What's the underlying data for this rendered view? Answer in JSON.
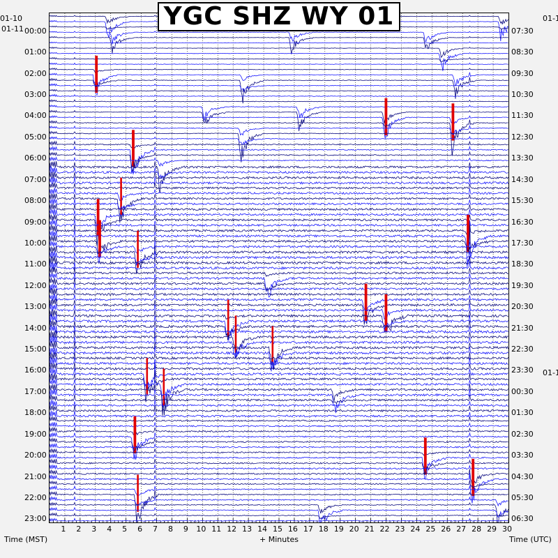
{
  "title": "YGC SHZ WY 01",
  "left_date_top": "01-10",
  "left_date": "01-11",
  "right_date": "01-1",
  "left_hours": [
    "00:00",
    "01:00",
    "02:00",
    "03:00",
    "04:00",
    "05:00",
    "06:00",
    "07:00",
    "08:00",
    "09:00",
    "10:00",
    "11:00",
    "12:00",
    "13:00",
    "14:00",
    "15:00",
    "16:00",
    "17:00",
    "18:00",
    "19:00",
    "20:00",
    "21:00",
    "22:00",
    "23:00"
  ],
  "right_hours": [
    "07:30",
    "08:30",
    "09:30",
    "10:30",
    "11:30",
    "12:30",
    "13:30",
    "14:30",
    "15:30",
    "16:30",
    "17:30",
    "18:30",
    "19:30",
    "20:30",
    "21:30",
    "22:30",
    "23:30",
    "00:30",
    "01:30",
    "02:30",
    "03:30",
    "04:30",
    "05:30",
    "06:30"
  ],
  "minute_ticks": [
    "1",
    "2",
    "3",
    "4",
    "5",
    "6",
    "7",
    "8",
    "9",
    "10",
    "11",
    "12",
    "13",
    "14",
    "15",
    "16",
    "17",
    "18",
    "19",
    "20",
    "21",
    "22",
    "23",
    "24",
    "25",
    "26",
    "27",
    "28",
    "29",
    "30"
  ],
  "x_axis_left_label": "Time (MST)",
  "x_axis_center_label": "+ Minutes",
  "x_axis_right_label": "Time (UTC)",
  "colors": {
    "trace_a": "#0a0a80",
    "trace_b": "#1a1aff",
    "clip": "#e00000",
    "grid": "#000000"
  },
  "chart_data": {
    "type": "seismogram-helicorder",
    "minutes_per_line": 30,
    "lines_per_hour": 4,
    "hours": 24,
    "noise_level_by_hour": [
      0.15,
      0.15,
      0.2,
      0.25,
      0.25,
      0.3,
      0.45,
      0.9,
      0.8,
      0.85,
      0.9,
      1.0,
      0.85,
      0.9,
      1.0,
      1.0,
      0.95,
      0.85,
      0.8,
      0.6,
      0.55,
      0.6,
      0.45,
      0.35
    ],
    "events": [
      {
        "hour": 0.2,
        "minute": 3.8,
        "amp": 1.4
      },
      {
        "hour": 0.2,
        "minute": 29.5,
        "amp": 1.6
      },
      {
        "hour": 0.9,
        "minute": 4.1,
        "amp": 1.3
      },
      {
        "hour": 0.9,
        "minute": 15.8,
        "amp": 1.4
      },
      {
        "hour": 0.9,
        "minute": 24.6,
        "amp": 1.5
      },
      {
        "hour": 1.7,
        "minute": 25.6,
        "amp": 1.6
      },
      {
        "hour": 2.8,
        "minute": 3.0,
        "amp": 1.8,
        "clip": true
      },
      {
        "hour": 2.9,
        "minute": 26.5,
        "amp": 1.6
      },
      {
        "hour": 3.0,
        "minute": 12.6,
        "amp": 1.5
      },
      {
        "hour": 4.4,
        "minute": 10.1,
        "amp": 1.5
      },
      {
        "hour": 4.4,
        "minute": 16.3,
        "amp": 1.7
      },
      {
        "hour": 4.7,
        "minute": 21.9,
        "amp": 1.9,
        "clip": true
      },
      {
        "hour": 5.0,
        "minute": 26.3,
        "amp": 2.0,
        "clip": true
      },
      {
        "hour": 5.5,
        "minute": 12.5,
        "amp": 2.0
      },
      {
        "hour": 6.3,
        "minute": 5.4,
        "amp": 2.5,
        "clip": true
      },
      {
        "hour": 7.0,
        "minute": 7.2,
        "amp": 1.8
      },
      {
        "hour": 8.5,
        "minute": 4.6,
        "amp": 2.0,
        "clip": true
      },
      {
        "hour": 9.4,
        "minute": 3.1,
        "amp": 2.2,
        "clip": true
      },
      {
        "hour": 10.6,
        "minute": 3.2,
        "amp": 1.8,
        "clip": true
      },
      {
        "hour": 10.3,
        "minute": 27.3,
        "amp": 2.3,
        "clip": true
      },
      {
        "hour": 11.0,
        "minute": 5.7,
        "amp": 2.0,
        "clip": true
      },
      {
        "hour": 12.3,
        "minute": 14.2,
        "amp": 1.8
      },
      {
        "hour": 13.4,
        "minute": 20.6,
        "amp": 2.0,
        "clip": true
      },
      {
        "hour": 14.0,
        "minute": 21.9,
        "amp": 2.0,
        "clip": true
      },
      {
        "hour": 14.3,
        "minute": 11.6,
        "amp": 2.0,
        "clip": true
      },
      {
        "hour": 15.1,
        "minute": 12.1,
        "amp": 2.2,
        "clip": true
      },
      {
        "hour": 15.6,
        "minute": 14.5,
        "amp": 2.4,
        "clip": true
      },
      {
        "hour": 16.9,
        "minute": 6.3,
        "amp": 2.2,
        "clip": true
      },
      {
        "hour": 17.4,
        "minute": 7.4,
        "amp": 2.6,
        "clip": true
      },
      {
        "hour": 17.7,
        "minute": 18.6,
        "amp": 1.8
      },
      {
        "hour": 19.8,
        "minute": 5.5,
        "amp": 2.2,
        "clip": true
      },
      {
        "hour": 20.8,
        "minute": 24.5,
        "amp": 1.8,
        "clip": true
      },
      {
        "hour": 21.7,
        "minute": 27.6,
        "amp": 2.2,
        "clip": true
      },
      {
        "hour": 22.5,
        "minute": 5.7,
        "amp": 2.4,
        "clip": true
      },
      {
        "hour": 23.2,
        "minute": 17.7,
        "amp": 1.6
      },
      {
        "hour": 23.0,
        "minute": 29.3,
        "amp": 1.6
      }
    ]
  }
}
